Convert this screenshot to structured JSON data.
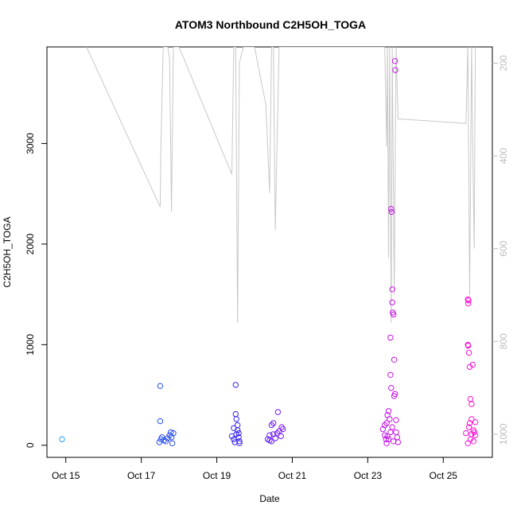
{
  "chart_data": {
    "type": "scatter",
    "title": "ATOM3 Northbound C2H5OH_TOGA",
    "xlabel": "Date",
    "ylabel": "C2H5OH_TOGA",
    "x_range_days": [
      14.5,
      26.3
    ],
    "ylim": [
      -120,
      3960
    ],
    "y_ticks": [
      0,
      1000,
      2000,
      3000
    ],
    "x_ticks": [
      {
        "day": 15,
        "label": "Oct 15"
      },
      {
        "day": 17,
        "label": "Oct 17"
      },
      {
        "day": 19,
        "label": "Oct 19"
      },
      {
        "day": 21,
        "label": "Oct 21"
      },
      {
        "day": 23,
        "label": "Oct 23"
      },
      {
        "day": 25,
        "label": "Oct 25"
      }
    ],
    "right_axis": {
      "ylim_reversed": [
        165,
        1050
      ],
      "ticks": [
        200,
        400,
        600,
        800,
        1000
      ],
      "color": "#bdbdbd"
    },
    "pressure_trace": {
      "color": "#c8c8c8",
      "points": [
        [
          15.55,
          165
        ],
        [
          17.5,
          510
        ],
        [
          17.52,
          380
        ],
        [
          17.58,
          165
        ],
        [
          17.7,
          165
        ],
        [
          17.75,
          190
        ],
        [
          17.8,
          520
        ],
        [
          17.85,
          165
        ],
        [
          18.0,
          165
        ],
        [
          19.4,
          440
        ],
        [
          19.45,
          165
        ],
        [
          19.5,
          165
        ],
        [
          19.55,
          760
        ],
        [
          19.6,
          200
        ],
        [
          19.7,
          165
        ],
        [
          20.0,
          165
        ],
        [
          20.3,
          290
        ],
        [
          20.4,
          480
        ],
        [
          20.45,
          165
        ],
        [
          20.5,
          165
        ],
        [
          20.55,
          560
        ],
        [
          20.6,
          360
        ],
        [
          20.65,
          165
        ],
        [
          23.45,
          165
        ],
        [
          23.5,
          380
        ],
        [
          23.52,
          165
        ],
        [
          23.55,
          620
        ],
        [
          23.58,
          165
        ],
        [
          23.62,
          760
        ],
        [
          23.65,
          165
        ],
        [
          23.7,
          700
        ],
        [
          23.75,
          165
        ],
        [
          23.8,
          320
        ],
        [
          25.6,
          330
        ],
        [
          25.65,
          165
        ],
        [
          25.7,
          700
        ],
        [
          25.75,
          165
        ],
        [
          25.8,
          500
        ],
        [
          25.82,
          600
        ],
        [
          25.85,
          165
        ]
      ]
    },
    "points": [
      [
        14.9,
        60
      ],
      [
        17.5,
        590
      ],
      [
        17.5,
        240
      ],
      [
        17.48,
        30
      ],
      [
        17.52,
        60
      ],
      [
        17.55,
        80
      ],
      [
        17.6,
        50
      ],
      [
        17.65,
        40
      ],
      [
        17.7,
        70
      ],
      [
        17.75,
        100
      ],
      [
        17.78,
        130
      ],
      [
        17.8,
        80
      ],
      [
        17.82,
        20
      ],
      [
        17.85,
        120
      ],
      [
        19.4,
        90
      ],
      [
        19.45,
        60
      ],
      [
        19.48,
        30
      ],
      [
        19.5,
        600
      ],
      [
        19.5,
        310
      ],
      [
        19.52,
        260
      ],
      [
        19.55,
        200
      ],
      [
        19.55,
        150
      ],
      [
        19.58,
        120
      ],
      [
        19.58,
        80
      ],
      [
        19.6,
        40
      ],
      [
        19.6,
        20
      ],
      [
        19.52,
        110
      ],
      [
        19.45,
        170
      ],
      [
        20.35,
        60
      ],
      [
        20.4,
        100
      ],
      [
        20.45,
        200
      ],
      [
        20.45,
        40
      ],
      [
        20.5,
        220
      ],
      [
        20.55,
        70
      ],
      [
        20.6,
        120
      ],
      [
        20.62,
        330
      ],
      [
        20.65,
        140
      ],
      [
        20.7,
        90
      ],
      [
        20.72,
        180
      ],
      [
        20.75,
        160
      ],
      [
        20.4,
        50
      ],
      [
        20.5,
        110
      ],
      [
        23.4,
        160
      ],
      [
        23.45,
        100
      ],
      [
        23.48,
        60
      ],
      [
        23.5,
        220
      ],
      [
        23.52,
        300
      ],
      [
        23.55,
        340
      ],
      [
        23.58,
        260
      ],
      [
        23.6,
        1070
      ],
      [
        23.6,
        700
      ],
      [
        23.62,
        570
      ],
      [
        23.62,
        2350
      ],
      [
        23.63,
        2320
      ],
      [
        23.65,
        1550
      ],
      [
        23.65,
        1420
      ],
      [
        23.66,
        1320
      ],
      [
        23.68,
        1300
      ],
      [
        23.7,
        850
      ],
      [
        23.7,
        490
      ],
      [
        23.72,
        3820
      ],
      [
        23.73,
        3730
      ],
      [
        23.72,
        510
      ],
      [
        23.75,
        250
      ],
      [
        23.75,
        130
      ],
      [
        23.78,
        80
      ],
      [
        23.8,
        30
      ],
      [
        23.5,
        20
      ],
      [
        23.55,
        60
      ],
      [
        23.6,
        130
      ],
      [
        23.65,
        180
      ],
      [
        23.68,
        40
      ],
      [
        23.45,
        200
      ],
      [
        23.52,
        90
      ],
      [
        25.6,
        120
      ],
      [
        25.65,
        1450
      ],
      [
        25.66,
        1410
      ],
      [
        25.67,
        1440
      ],
      [
        25.65,
        1000
      ],
      [
        25.66,
        990
      ],
      [
        25.68,
        920
      ],
      [
        25.7,
        780
      ],
      [
        25.72,
        460
      ],
      [
        25.75,
        410
      ],
      [
        25.78,
        800
      ],
      [
        25.75,
        260
      ],
      [
        25.7,
        220
      ],
      [
        25.68,
        180
      ],
      [
        25.8,
        150
      ],
      [
        25.82,
        130
      ],
      [
        25.85,
        100
      ],
      [
        25.72,
        60
      ],
      [
        25.8,
        40
      ],
      [
        25.65,
        20
      ],
      [
        25.75,
        110
      ],
      [
        25.85,
        230
      ]
    ]
  }
}
